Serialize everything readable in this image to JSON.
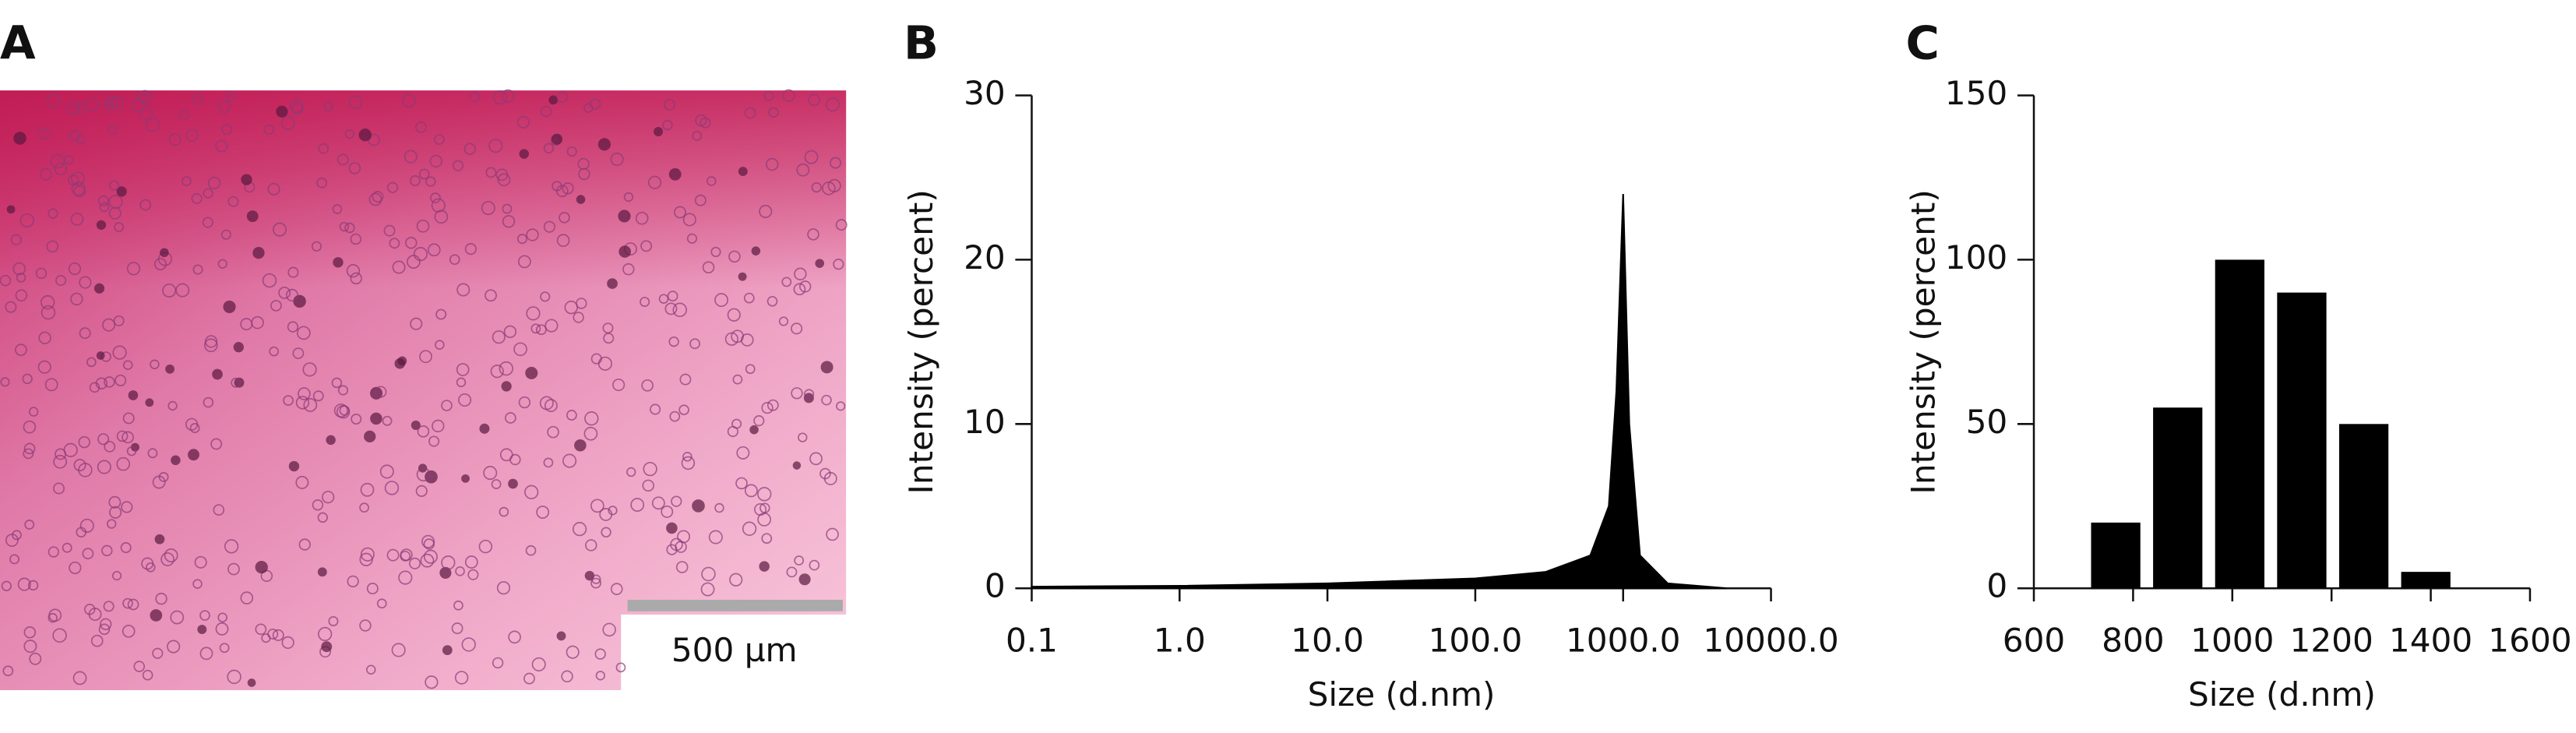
{
  "chart_data": [
    {
      "type": "image",
      "label": "A",
      "scale_bar": "500 µm"
    },
    {
      "type": "area",
      "label": "B",
      "ylabel": "Intensity (percent)",
      "xlabel": "Size (d.nm)",
      "x": [
        0.1,
        1,
        10,
        100,
        300,
        600,
        800,
        900,
        1000,
        1100,
        1300,
        2000,
        5000
      ],
      "values": [
        0.1,
        0.15,
        0.3,
        0.6,
        1,
        2,
        5,
        12,
        24,
        10,
        2,
        0.3,
        0
      ],
      "color": "#000000",
      "xscale": "log",
      "xlim": [
        0.1,
        10000
      ],
      "xticks": [
        0.1,
        {
          "value": 1,
          "label": "1.0"
        },
        {
          "value": 10,
          "label": "10.0"
        },
        {
          "value": 100,
          "label": "100.0"
        },
        {
          "value": 1000,
          "label": "1000.0"
        },
        {
          "value": 10000,
          "label": "10000.0"
        }
      ],
      "ylim": [
        0,
        30
      ],
      "yticks": [
        0,
        10,
        20,
        30
      ]
    },
    {
      "type": "bar",
      "label": "C",
      "ylabel": "Intensity (percent)",
      "xlabel": "Size (d.nm)",
      "x": [
        765,
        890,
        1015,
        1140,
        1265,
        1390
      ],
      "values": [
        20,
        55,
        100,
        90,
        50,
        5
      ],
      "color": "#000000",
      "xlim": [
        600,
        1600
      ],
      "xticks": [
        600,
        800,
        1000,
        1200,
        1400,
        1600
      ],
      "ylim": [
        0,
        150
      ],
      "yticks": [
        0,
        50,
        100,
        150
      ]
    }
  ]
}
